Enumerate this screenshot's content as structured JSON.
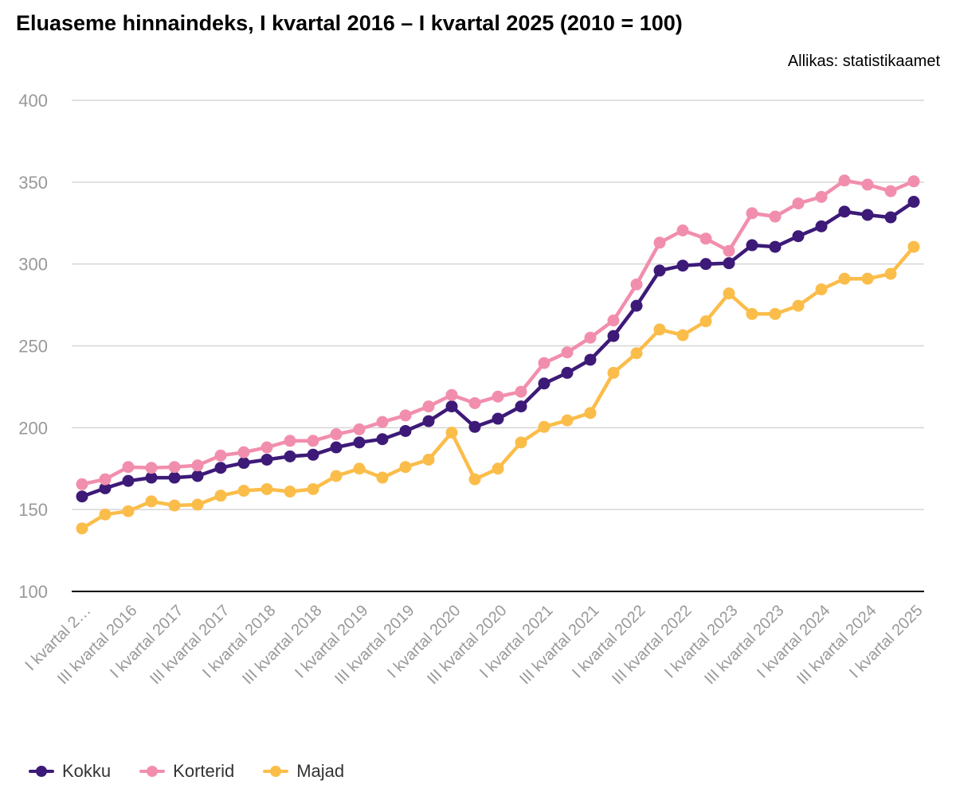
{
  "title": "Eluaseme hinnaindeks, I kvartal 2016 – I kvartal 2025 (2010 = 100)",
  "source": "Allikas: statistikaamet",
  "chart_data": {
    "type": "line",
    "title": "Eluaseme hinnaindeks, I kvartal 2016 – I kvartal 2025 (2010 = 100)",
    "xlabel": "",
    "ylabel": "",
    "ylim": [
      100,
      400
    ],
    "yticks": [
      100,
      150,
      200,
      250,
      300,
      350,
      400
    ],
    "grid": true,
    "legend_position": "bottom-left",
    "x_tick_labels": [
      "I kvartal 2…",
      "III kvartal 2016",
      "I kvartal 2017",
      "III kvartal 2017",
      "I kvartal 2018",
      "III kvartal 2018",
      "I kvartal 2019",
      "III kvartal 2019",
      "I kvartal 2020",
      "III kvartal 2020",
      "I kvartal 2021",
      "III kvartal 2021",
      "I kvartal 2022",
      "III kvartal 2022",
      "I kvartal 2023",
      "III kvartal 2023",
      "I kvartal 2024",
      "III kvartal 2024",
      "I kvartal 2025"
    ],
    "categories": [
      "I kvartal 2016",
      "II kvartal 2016",
      "III kvartal 2016",
      "IV kvartal 2016",
      "I kvartal 2017",
      "II kvartal 2017",
      "III kvartal 2017",
      "IV kvartal 2017",
      "I kvartal 2018",
      "II kvartal 2018",
      "III kvartal 2018",
      "IV kvartal 2018",
      "I kvartal 2019",
      "II kvartal 2019",
      "III kvartal 2019",
      "IV kvartal 2019",
      "I kvartal 2020",
      "II kvartal 2020",
      "III kvartal 2020",
      "IV kvartal 2020",
      "I kvartal 2021",
      "II kvartal 2021",
      "III kvartal 2021",
      "IV kvartal 2021",
      "I kvartal 2022",
      "II kvartal 2022",
      "III kvartal 2022",
      "IV kvartal 2022",
      "I kvartal 2023",
      "II kvartal 2023",
      "III kvartal 2023",
      "IV kvartal 2023",
      "I kvartal 2024",
      "II kvartal 2024",
      "III kvartal 2024",
      "IV kvartal 2024",
      "I kvartal 2025"
    ],
    "series": [
      {
        "name": "Kokku",
        "color": "#3d1a78",
        "values": [
          158,
          163,
          167.5,
          169.5,
          169.5,
          170.5,
          175.5,
          178.5,
          180.5,
          182.5,
          183.5,
          188,
          191,
          193,
          198,
          204,
          213,
          200.5,
          205.5,
          213,
          227,
          233.5,
          241.5,
          256,
          274.5,
          296,
          299,
          300,
          300.5,
          311.5,
          310.5,
          317,
          323,
          332,
          330,
          328.5,
          338
        ]
      },
      {
        "name": "Korterid",
        "color": "#f28ead",
        "values": [
          165.5,
          168.5,
          176,
          175.5,
          176,
          177,
          183,
          185,
          188,
          192,
          192,
          196,
          199,
          203.5,
          207.5,
          213,
          220,
          215,
          219,
          222,
          239.5,
          246,
          255,
          265.5,
          287.5,
          313,
          320.5,
          315.5,
          308,
          331,
          329,
          337,
          341,
          351,
          348.5,
          344.5,
          350.5
        ]
      },
      {
        "name": "Majad",
        "color": "#fbbd4a",
        "values": [
          138.5,
          147,
          149,
          155,
          152.5,
          153,
          158.5,
          161.5,
          162.5,
          161,
          162.5,
          170.5,
          175,
          169.5,
          176,
          180.5,
          197,
          168.5,
          175,
          191,
          200.5,
          204.5,
          209,
          233.5,
          245.5,
          260,
          256.5,
          265,
          282,
          269.5,
          269.5,
          274.5,
          284.5,
          291,
          291,
          294,
          310.5
        ]
      }
    ]
  }
}
